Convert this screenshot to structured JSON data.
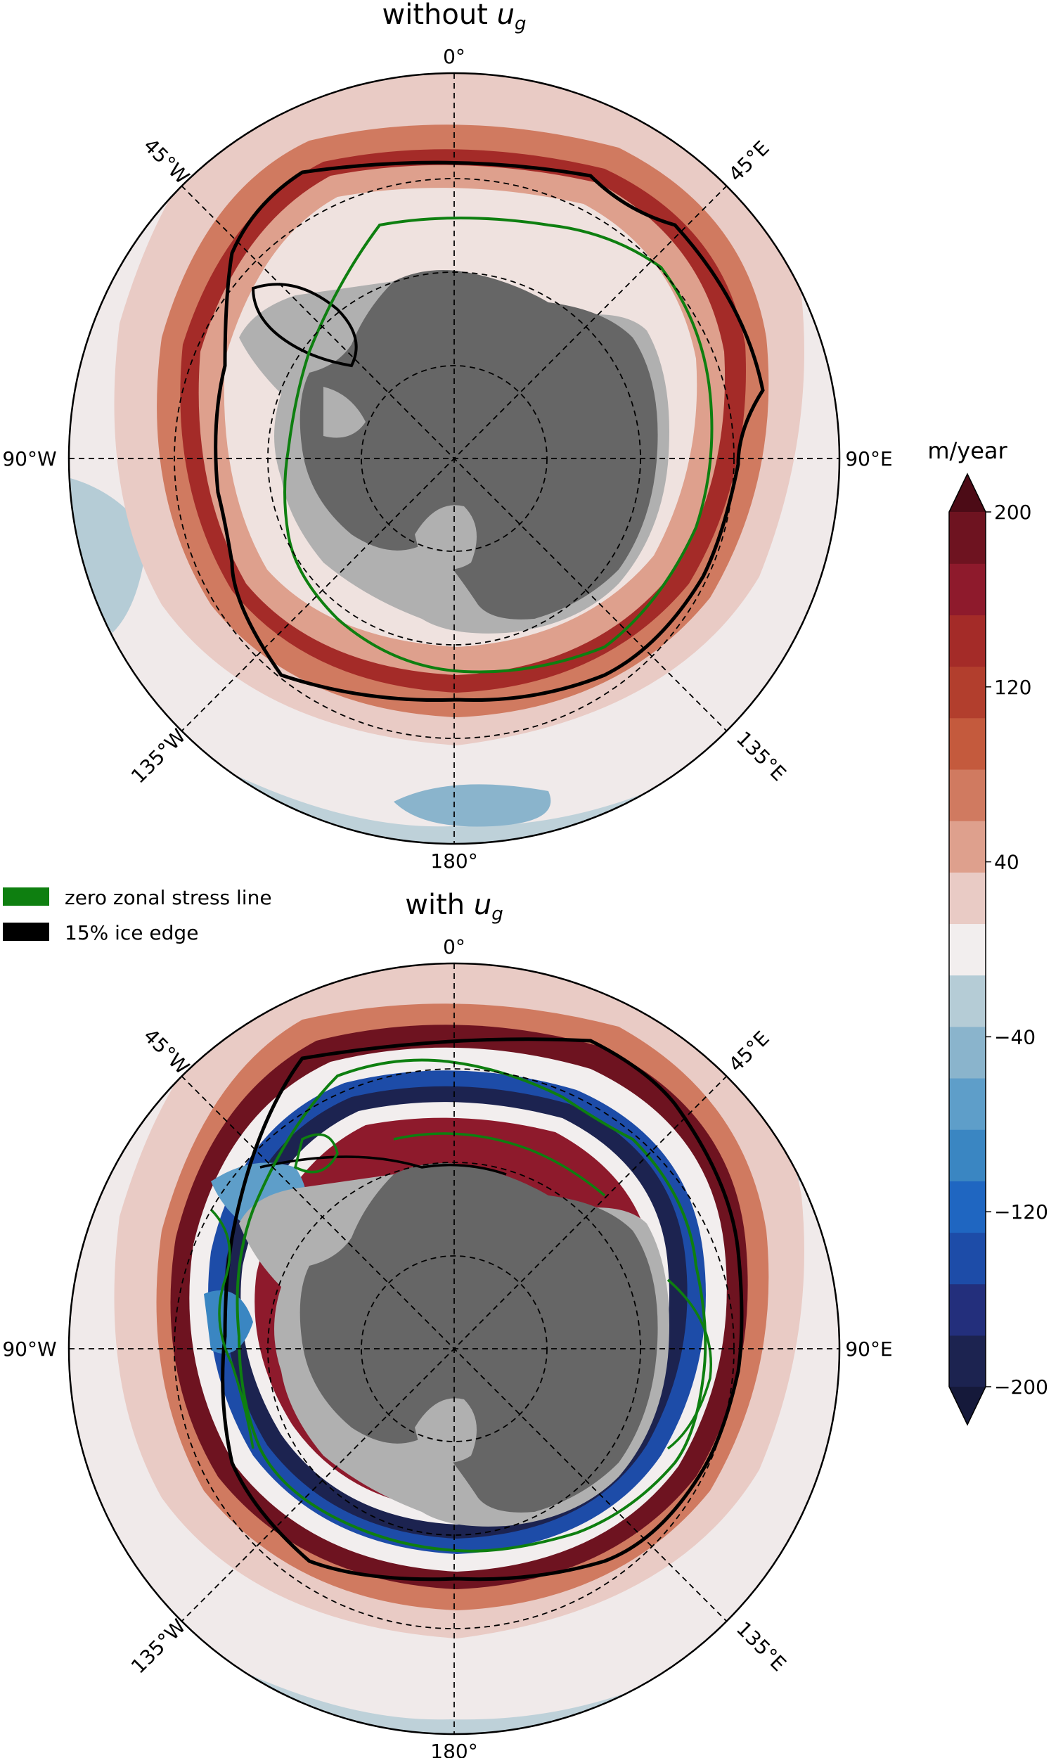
{
  "figure": {
    "panels": [
      {
        "id": "top",
        "title_main": "without ",
        "title_var": "u",
        "title_sub": "g",
        "lon_labels": {
          "top": "0°",
          "bottom": "180°",
          "left": "90°W",
          "right": "90°E",
          "nw": "45°W",
          "ne": "45°E",
          "sw": "135°W",
          "se": "135°E"
        }
      },
      {
        "id": "bottom",
        "title_main": "with ",
        "title_var": "u",
        "title_sub": "g",
        "lon_labels": {
          "top": "0°",
          "bottom": "180°",
          "left": "90°W",
          "right": "90°E",
          "nw": "45°W",
          "ne": "45°E",
          "sw": "135°W",
          "se": "135°E"
        }
      }
    ],
    "legend": [
      {
        "label": "zero zonal stress line",
        "color": "#0e7f10"
      },
      {
        "label": "15% ice edge",
        "color": "#000000"
      }
    ],
    "colorbar": {
      "unit": "m/year",
      "ticks": [
        "200",
        "120",
        "40",
        "−40",
        "−120",
        "−200"
      ],
      "levels": [
        -200,
        -180,
        -160,
        -140,
        -120,
        -100,
        -80,
        -60,
        -40,
        -20,
        0,
        20,
        40,
        60,
        80,
        100,
        120,
        140,
        160,
        180,
        200
      ],
      "colors": [
        "#1c2350",
        "#232f7c",
        "#1d4ca8",
        "#1f66c1",
        "#3a86c2",
        "#5e9ec9",
        "#8ab4cc",
        "#b5ccd6",
        "#f2eeee",
        "#e9cbc5",
        "#dea08d",
        "#d07a60",
        "#c45a3d",
        "#b23e2d",
        "#a42b28",
        "#8e1a2c",
        "#6e1320"
      ],
      "extend": "both",
      "overflow_low_color": "#15193a",
      "overflow_high_color": "#4c0b16"
    },
    "colors": {
      "land": "#666666",
      "ice_shelf": "#b0b0b0",
      "ocean_background": "#f0eaea"
    }
  }
}
